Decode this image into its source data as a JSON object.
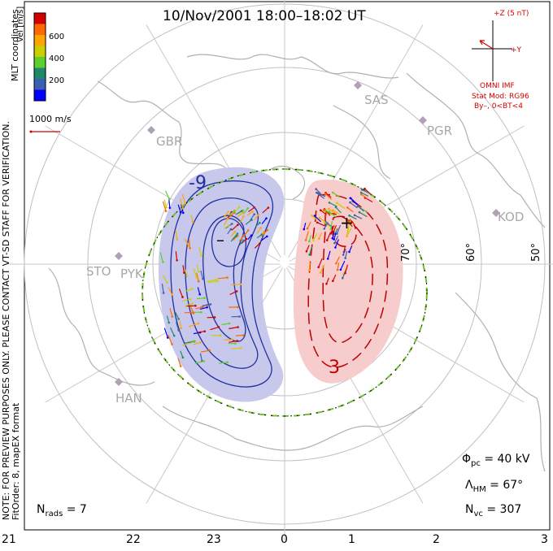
{
  "title": "10/Nov/2001 18:00–18:02 UT",
  "coordinates_label": "MLT coordinates",
  "velocity_legend": {
    "axis_label": "Vel [m/s]",
    "ticks": [
      "600",
      "400",
      "200"
    ],
    "colors": [
      "#d40000",
      "#ff6a00",
      "#ffa500",
      "#c9d000",
      "#5fcf2f",
      "#1f8a6a",
      "#3f5fb0",
      "#0000ff"
    ]
  },
  "scale_vector_label": "1000 m/s",
  "imf": {
    "z_label": "+Z (5 nT)",
    "y_label": "+Y",
    "source": "OMNI IMF",
    "model": "Stat Mod: RG96",
    "condition": "By–, 0<BT<4"
  },
  "note": {
    "line1": "NOTE: FOR PREVIEW PURPOSES ONLY. PLEASE CONTACT VT-SD STAFF FOR VERIFICATION.",
    "line2": "FitOrder: 8, mapEX format"
  },
  "stats": {
    "nrads": "N rads = 7",
    "phi_pc": "Φpc = 40 kV",
    "lambda_hm": "ΛHM = 67°",
    "nvc": "Nvc = 307"
  },
  "stats_parts": {
    "nrads_sym": "N",
    "nrads_sub": "rads",
    "nrads_val": " = 7",
    "phi_sym": "Φ",
    "phi_sub": "pc",
    "phi_val": " = 40 kV",
    "lam_sym": "Λ",
    "lam_sub": "HM",
    "lam_val": " = 67°",
    "nvc_sym": "N",
    "nvc_sub": "vc",
    "nvc_val": " = 307"
  },
  "mlt_ticks": [
    "21",
    "22",
    "23",
    "0",
    "1",
    "2",
    "3"
  ],
  "latitude_labels": [
    "70°",
    "60°",
    "50°"
  ],
  "stations": [
    "SAS",
    "PGR",
    "GBR",
    "KOD",
    "STO",
    "PYK",
    "HAN"
  ],
  "contour_labels": {
    "neg": "-9",
    "pos": "3",
    "min_marker": "–",
    "max_marker": "+"
  },
  "colors": {
    "negative": "#2030a0",
    "positive": "#c00000",
    "negative_fill": "#c8c8ec",
    "positive_fill": "#f6cccc",
    "boundary": "#70c030",
    "coast": "#b0b0b0"
  }
}
